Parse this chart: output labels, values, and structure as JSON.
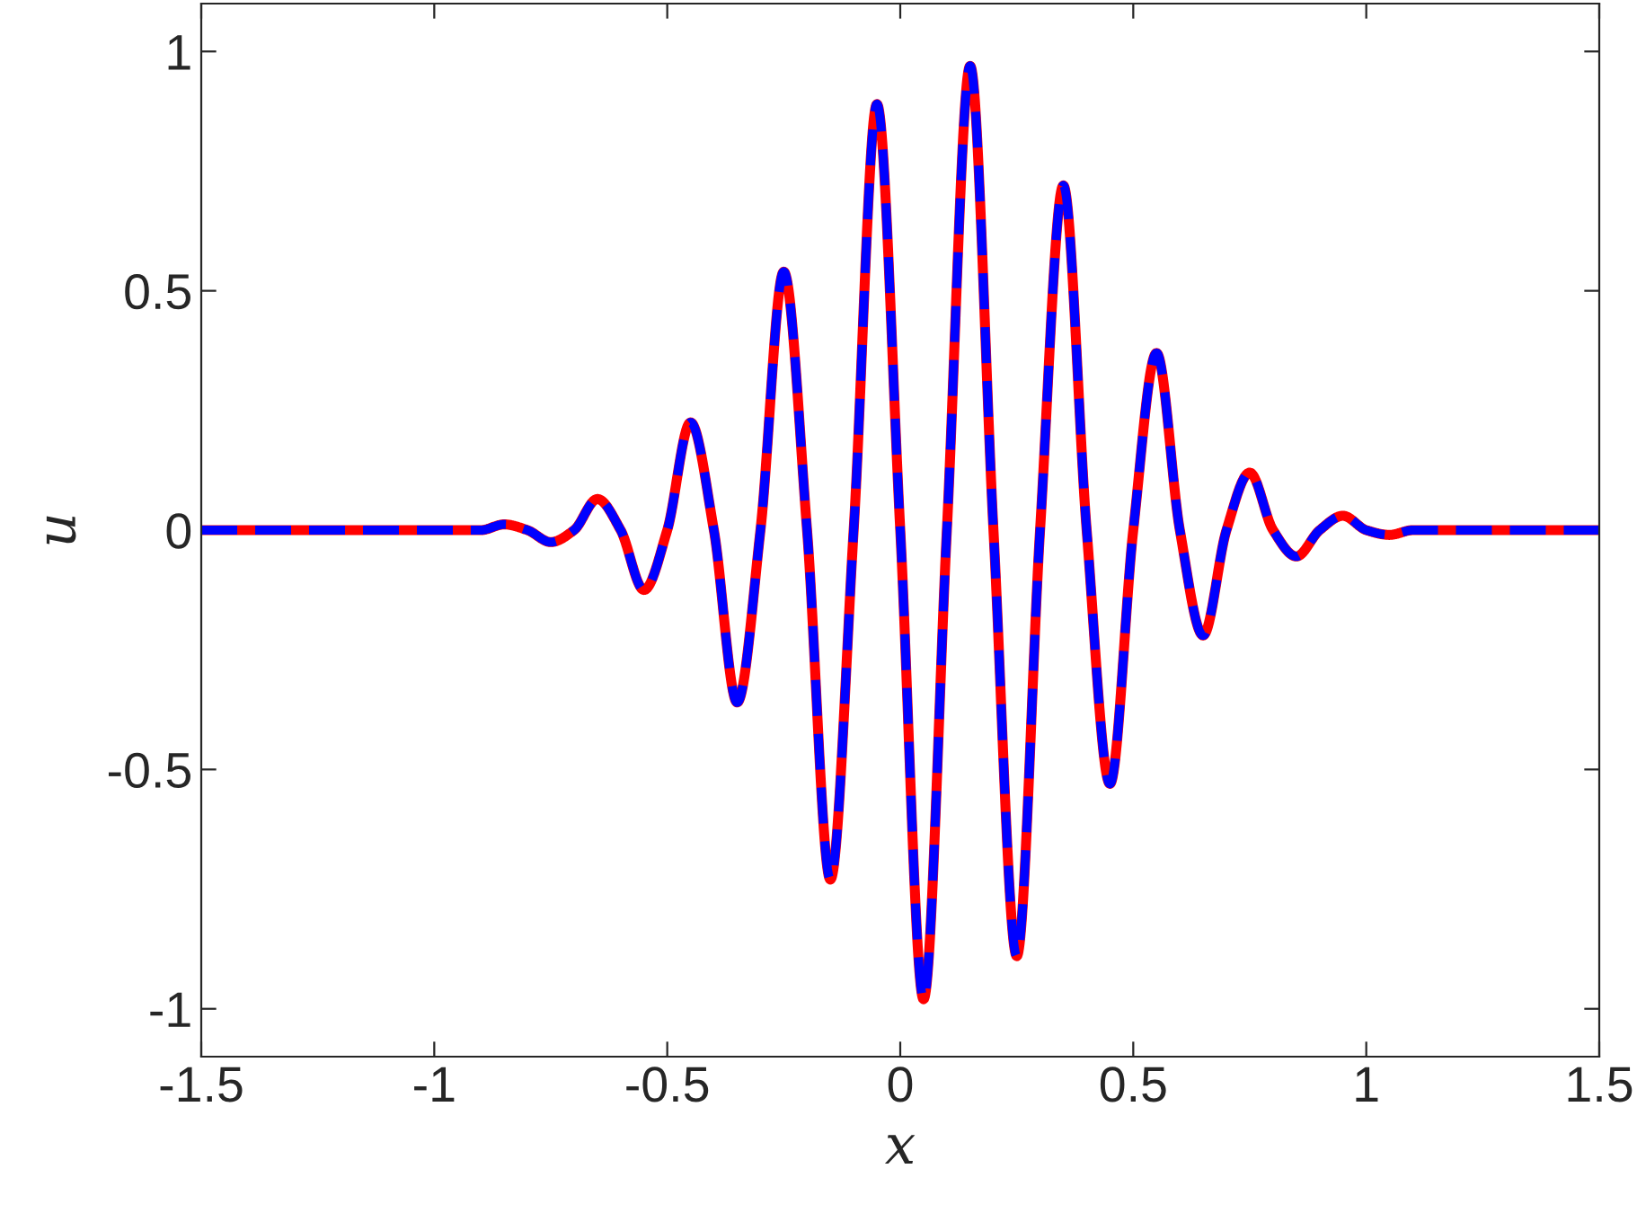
{
  "chart_data": {
    "type": "line",
    "xlabel": "x",
    "ylabel": "u",
    "xlim": [
      -1.5,
      1.5
    ],
    "ylim": [
      -1.1,
      1.1
    ],
    "xticks": [
      -1.5,
      -1,
      -0.5,
      0,
      0.5,
      1,
      1.5
    ],
    "yticks": [
      -1,
      -0.5,
      0,
      0.5,
      1
    ],
    "grid": false,
    "legend": false,
    "x": [
      -1.5,
      -1.0,
      -0.9,
      -0.85,
      -0.8,
      -0.75,
      -0.7,
      -0.65,
      -0.6,
      -0.55,
      -0.5,
      -0.45,
      -0.4,
      -0.35,
      -0.3,
      -0.25,
      -0.2,
      -0.15,
      -0.1,
      -0.05,
      0,
      0.05,
      0.1,
      0.15,
      0.2,
      0.25,
      0.3,
      0.35,
      0.4,
      0.45,
      0.5,
      0.55,
      0.6,
      0.65,
      0.7,
      0.75,
      0.8,
      0.85,
      0.9,
      0.95,
      1.0,
      1.05,
      1.1,
      1.5
    ],
    "series": [
      {
        "color": "#ff0000",
        "line_style": "solid",
        "values": [
          0,
          0,
          0,
          0.012,
          0,
          -0.025,
          0,
          0.065,
          0,
          -0.125,
          0,
          0.225,
          0,
          -0.36,
          0,
          0.54,
          0,
          -0.73,
          0,
          0.89,
          0,
          -0.98,
          0,
          0.97,
          0,
          -0.89,
          0,
          0.72,
          0,
          -0.53,
          0,
          0.37,
          0,
          -0.22,
          0,
          0.12,
          0,
          -0.055,
          0,
          0.03,
          0,
          -0.01,
          0,
          0
        ]
      },
      {
        "color": "#0000ff",
        "line_style": "dashed",
        "values": [
          0,
          0,
          0,
          0.012,
          0,
          -0.025,
          0,
          0.065,
          0,
          -0.125,
          0,
          0.225,
          0,
          -0.36,
          0,
          0.54,
          0,
          -0.73,
          0,
          0.89,
          0,
          -0.98,
          0,
          0.97,
          0,
          -0.89,
          0,
          0.72,
          0,
          -0.53,
          0,
          0.37,
          0,
          -0.22,
          0,
          0.12,
          0,
          -0.055,
          0,
          0.03,
          0,
          -0.01,
          0,
          0
        ]
      }
    ]
  }
}
